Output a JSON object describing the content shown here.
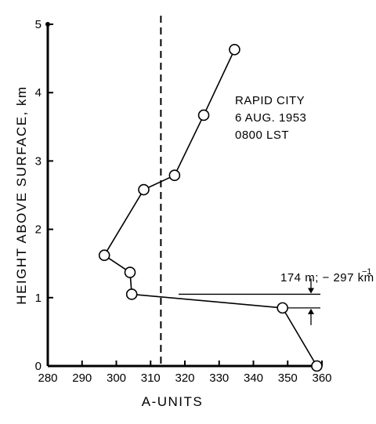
{
  "chart_data": {
    "type": "line",
    "xlabel": "A-UNITS",
    "ylabel": "HEIGHT  ABOVE  SURFACE, km",
    "xlim": [
      280,
      360
    ],
    "ylim": [
      0,
      5
    ],
    "x_ticks": [
      280,
      290,
      300,
      310,
      320,
      330,
      340,
      350,
      360
    ],
    "y_ticks": [
      0,
      1,
      2,
      3,
      4,
      5
    ],
    "grid": false,
    "series": [
      {
        "points": [
          {
            "x": 334.5,
            "y": 4.63
          },
          {
            "x": 325.5,
            "y": 3.67
          },
          {
            "x": 317,
            "y": 2.79
          },
          {
            "x": 308,
            "y": 2.58
          },
          {
            "x": 296.5,
            "y": 1.62
          },
          {
            "x": 304,
            "y": 1.37
          },
          {
            "x": 304.5,
            "y": 1.05
          },
          {
            "x": 348.5,
            "y": 0.85
          },
          {
            "x": 358.5,
            "y": 0.0
          }
        ]
      }
    ],
    "reference_line": {
      "x": 313,
      "style": "dashed"
    },
    "annotation_block": {
      "lines": [
        "RAPID CITY",
        "6  AUG. 1953",
        "0800  LST"
      ]
    },
    "layer_annotation": {
      "text": "174 m;  − 297 km",
      "superscript": "−1",
      "y_top": 1.05,
      "y_bottom": 0.85
    }
  }
}
